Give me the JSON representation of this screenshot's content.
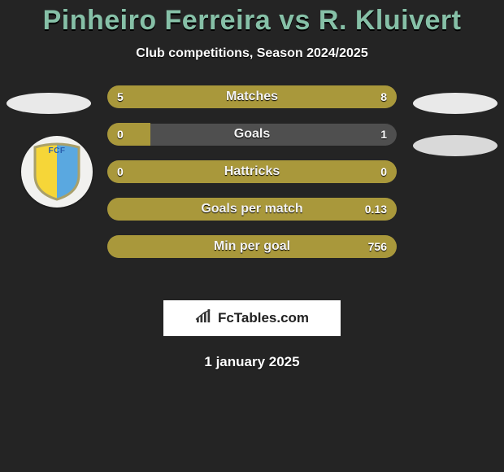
{
  "background_color": "#242424",
  "title": {
    "text": "Pinheiro Ferreira vs R. Kluivert",
    "color": "#86c0a7",
    "fontsize": 34
  },
  "subtitle": {
    "text": "Club competitions, Season 2024/2025",
    "color": "#fdfdfd",
    "fontsize": 16
  },
  "side_ellipses": {
    "color": "#e9e9e9",
    "width": 104,
    "height": 26
  },
  "badge": {
    "bg_color": "#f1f1ef",
    "shield_left_color": "#f6d638",
    "shield_right_color": "#5aa8e0",
    "border_color": "#a9a06a",
    "text": "FCF",
    "text_color": "#2a5fae"
  },
  "bars": {
    "track_color": "#4f4f4f",
    "fill_color": "#a9983b",
    "text_color": "#f3f3f3",
    "height": 28,
    "gap": 18,
    "items": [
      {
        "label": "Matches",
        "left_val": "5",
        "right_val": "8",
        "left_pct": 38.5,
        "right_pct": 61.5
      },
      {
        "label": "Goals",
        "left_val": "0",
        "right_val": "1",
        "left_pct": 15,
        "right_pct": 0
      },
      {
        "label": "Hattricks",
        "left_val": "0",
        "right_val": "0",
        "left_pct": 100,
        "right_pct": 0
      },
      {
        "label": "Goals per match",
        "left_val": "",
        "right_val": "0.13",
        "left_pct": 100,
        "right_pct": 0
      },
      {
        "label": "Min per goal",
        "left_val": "",
        "right_val": "756",
        "left_pct": 100,
        "right_pct": 0
      }
    ]
  },
  "brand": {
    "text": "FcTables.com",
    "bg_color": "#ffffff",
    "text_color": "#222222",
    "icon_color": "#333333"
  },
  "date": {
    "text": "1 january 2025",
    "color": "#ffffff",
    "fontsize": 17
  }
}
